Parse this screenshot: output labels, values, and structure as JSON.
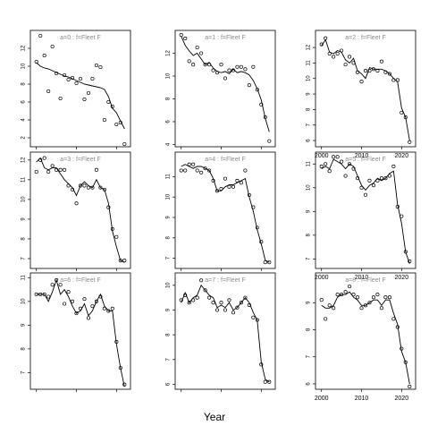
{
  "xlabel": "Year",
  "chart_data": [
    {
      "type": "scatter",
      "title": "a=0 : f=Fleet F",
      "ylim": [
        1,
        14
      ],
      "yticks": [
        2,
        4,
        6,
        8,
        10,
        12
      ],
      "xticks": [
        2000,
        2010,
        2020
      ],
      "show_xtick_labels": false,
      "series": [
        {
          "kind": "points",
          "x": [
            2000,
            2001,
            2002,
            2003,
            2004,
            2005,
            2006,
            2007,
            2008,
            2009,
            2010,
            2011,
            2012,
            2013,
            2014,
            2015,
            2016,
            2017,
            2018,
            2019,
            2020,
            2021,
            2022
          ],
          "y": [
            10.5,
            13.4,
            11.2,
            7.2,
            12.2,
            9.2,
            6.4,
            9.0,
            8.5,
            8.7,
            8.1,
            8.6,
            6.3,
            7.0,
            8.6,
            10.1,
            9.9,
            4.0,
            6.0,
            5.5,
            3.5,
            3.7,
            1.3
          ]
        },
        {
          "kind": "fit",
          "x": [
            2000,
            2001,
            2002,
            2003,
            2004,
            2005,
            2006,
            2007,
            2008,
            2009,
            2010,
            2011,
            2012,
            2013,
            2014,
            2015,
            2016,
            2017,
            2018,
            2019,
            2020,
            2021,
            2022
          ],
          "y": [
            10.4,
            10.0,
            9.8,
            9.7,
            9.5,
            9.3,
            9.1,
            8.9,
            8.8,
            8.6,
            8.4,
            8.2,
            8.0,
            7.9,
            7.8,
            7.7,
            7.6,
            7.4,
            6.6,
            5.3,
            4.8,
            3.9,
            3.0
          ]
        }
      ]
    },
    {
      "type": "scatter",
      "title": "a=3 : f=Fleet F",
      "ylim": [
        6.5,
        12.4
      ],
      "yticks": [
        7,
        8,
        9,
        10,
        11,
        12
      ],
      "xticks": [
        2000,
        2010,
        2020
      ],
      "show_xtick_labels": false,
      "series": [
        {
          "kind": "points",
          "x": [
            2000,
            2001,
            2002,
            2003,
            2004,
            2005,
            2006,
            2007,
            2008,
            2009,
            2010,
            2011,
            2012,
            2013,
            2014,
            2015,
            2016,
            2017,
            2018,
            2019,
            2020,
            2021,
            2022
          ],
          "y": [
            11.4,
            12.0,
            12.1,
            11.4,
            11.7,
            11.5,
            11.5,
            11.5,
            10.7,
            10.5,
            9.8,
            10.7,
            10.7,
            10.6,
            10.6,
            11.5,
            10.6,
            10.5,
            9.6,
            8.5,
            8.1,
            6.9,
            6.9
          ]
        },
        {
          "kind": "fit",
          "x": [
            2000,
            2001,
            2002,
            2003,
            2004,
            2005,
            2006,
            2007,
            2008,
            2009,
            2010,
            2011,
            2012,
            2013,
            2014,
            2015,
            2016,
            2017,
            2018,
            2019,
            2020,
            2021,
            2022
          ],
          "y": [
            11.9,
            12.1,
            11.6,
            11.5,
            11.6,
            11.6,
            11.3,
            11.0,
            10.8,
            10.6,
            10.2,
            10.7,
            10.9,
            10.7,
            10.6,
            11.0,
            10.6,
            10.5,
            9.8,
            8.4,
            7.6,
            6.9,
            6.8
          ]
        }
      ]
    },
    {
      "type": "scatter",
      "title": "a=6 : f=Fleet F",
      "ylim": [
        6.3,
        11.2
      ],
      "yticks": [
        7,
        8,
        9,
        10,
        11
      ],
      "xticks": [
        2000,
        2010,
        2020
      ],
      "show_xtick_labels": false,
      "series": [
        {
          "kind": "points",
          "x": [
            2000,
            2001,
            2002,
            2003,
            2004,
            2005,
            2006,
            2007,
            2008,
            2009,
            2010,
            2011,
            2012,
            2013,
            2014,
            2015,
            2016,
            2017,
            2018,
            2019,
            2020,
            2021,
            2022
          ],
          "y": [
            10.3,
            10.3,
            10.3,
            10.2,
            10.7,
            10.9,
            10.7,
            9.9,
            10.4,
            10.0,
            9.5,
            9.7,
            10.1,
            9.3,
            9.8,
            10.0,
            10.2,
            9.7,
            9.6,
            9.7,
            8.3,
            7.2,
            6.5
          ]
        },
        {
          "kind": "fit",
          "x": [
            2000,
            2001,
            2002,
            2003,
            2004,
            2005,
            2006,
            2007,
            2008,
            2009,
            2010,
            2011,
            2012,
            2013,
            2014,
            2015,
            2016,
            2017,
            2018,
            2019,
            2020,
            2021,
            2022
          ],
          "y": [
            10.3,
            10.3,
            10.3,
            10.0,
            10.4,
            10.9,
            10.3,
            10.5,
            10.2,
            9.8,
            9.5,
            9.6,
            9.9,
            9.4,
            9.6,
            10.0,
            10.3,
            9.8,
            9.6,
            9.6,
            8.2,
            7.2,
            6.4
          ]
        }
      ]
    },
    {
      "type": "scatter",
      "title": "a=1 : f=Fleet F",
      "ylim": [
        3.8,
        14
      ],
      "yticks": [
        4,
        6,
        8,
        10,
        12
      ],
      "xticks": [
        2000,
        2010,
        2020
      ],
      "show_xtick_labels": false,
      "series": [
        {
          "kind": "points",
          "x": [
            2000,
            2001,
            2002,
            2003,
            2004,
            2005,
            2006,
            2007,
            2008,
            2009,
            2010,
            2011,
            2012,
            2013,
            2014,
            2015,
            2016,
            2017,
            2018,
            2019,
            2020,
            2021,
            2022
          ],
          "y": [
            13.6,
            13.3,
            11.3,
            11.0,
            12.5,
            12.0,
            11.0,
            11.0,
            10.5,
            10.3,
            11.0,
            9.8,
            10.5,
            10.5,
            10.8,
            10.8,
            10.6,
            9.2,
            10.8,
            8.8,
            7.5,
            6.4,
            4.3
          ]
        },
        {
          "kind": "fit",
          "x": [
            2000,
            2001,
            2002,
            2003,
            2004,
            2005,
            2006,
            2007,
            2008,
            2009,
            2010,
            2011,
            2012,
            2013,
            2014,
            2015,
            2016,
            2017,
            2018,
            2019,
            2020,
            2021,
            2022
          ],
          "y": [
            13.5,
            12.7,
            12.2,
            11.8,
            12.0,
            11.5,
            11.0,
            11.2,
            10.7,
            10.4,
            10.3,
            10.4,
            10.2,
            10.6,
            10.3,
            10.4,
            10.3,
            10.1,
            9.6,
            8.9,
            7.9,
            6.3,
            5.1
          ]
        }
      ]
    },
    {
      "type": "scatter",
      "title": "a=4 : f=Fleet F",
      "ylim": [
        6.5,
        12.2
      ],
      "yticks": [
        7,
        8,
        9,
        10,
        11
      ],
      "xticks": [
        2000,
        2010,
        2020
      ],
      "show_xtick_labels": false,
      "series": [
        {
          "kind": "points",
          "x": [
            2000,
            2001,
            2002,
            2003,
            2004,
            2005,
            2006,
            2007,
            2008,
            2009,
            2010,
            2011,
            2012,
            2013,
            2014,
            2015,
            2016,
            2017,
            2018,
            2019,
            2020,
            2021,
            2022
          ],
          "y": [
            11.3,
            11.3,
            11.6,
            11.6,
            11.3,
            11.2,
            11.4,
            11.3,
            10.8,
            10.3,
            10.4,
            10.9,
            10.5,
            10.5,
            10.8,
            10.7,
            11.3,
            10.1,
            9.5,
            8.5,
            7.8,
            6.8,
            6.8
          ]
        },
        {
          "kind": "fit",
          "x": [
            2000,
            2001,
            2002,
            2003,
            2004,
            2005,
            2006,
            2007,
            2008,
            2009,
            2010,
            2011,
            2012,
            2013,
            2014,
            2015,
            2016,
            2017,
            2018,
            2019,
            2020,
            2021,
            2022
          ],
          "y": [
            11.5,
            11.6,
            11.5,
            11.4,
            11.5,
            11.5,
            11.4,
            11.3,
            10.9,
            10.3,
            10.3,
            10.5,
            10.6,
            10.6,
            10.7,
            10.8,
            10.9,
            10.0,
            9.3,
            8.4,
            7.7,
            6.9,
            6.8
          ]
        }
      ]
    },
    {
      "type": "scatter",
      "title": "a=7 : f=Fleet F",
      "ylim": [
        5.8,
        10.5
      ],
      "yticks": [
        6,
        7,
        8,
        9,
        10
      ],
      "xticks": [
        2000,
        2010,
        2020
      ],
      "show_xtick_labels": false,
      "series": [
        {
          "kind": "points",
          "x": [
            2000,
            2001,
            2002,
            2003,
            2004,
            2005,
            2006,
            2007,
            2008,
            2009,
            2010,
            2011,
            2012,
            2013,
            2014,
            2015,
            2016,
            2017,
            2018,
            2019,
            2020,
            2021,
            2022
          ],
          "y": [
            9.4,
            9.6,
            9.3,
            9.4,
            9.5,
            10.2,
            9.8,
            9.5,
            9.3,
            9.0,
            9.3,
            9.0,
            9.4,
            8.9,
            9.1,
            9.3,
            9.5,
            9.2,
            8.7,
            8.6,
            6.8,
            6.1,
            6.1
          ]
        },
        {
          "kind": "fit",
          "x": [
            2000,
            2001,
            2002,
            2003,
            2004,
            2005,
            2006,
            2007,
            2008,
            2009,
            2010,
            2011,
            2012,
            2013,
            2014,
            2015,
            2016,
            2017,
            2018,
            2019,
            2020,
            2021,
            2022
          ],
          "y": [
            9.3,
            9.7,
            9.3,
            9.5,
            9.6,
            10.0,
            9.8,
            9.6,
            9.5,
            9.1,
            9.2,
            9.1,
            9.3,
            9.0,
            9.1,
            9.3,
            9.5,
            9.3,
            8.9,
            8.6,
            6.9,
            6.2,
            6.1
          ]
        }
      ]
    },
    {
      "type": "scatter",
      "title": "a=2 : f=Fleet F",
      "ylim": [
        5.6,
        13.1
      ],
      "yticks": [
        6,
        7,
        8,
        9,
        10,
        11,
        12
      ],
      "xticks": [
        2000,
        2010,
        2020
      ],
      "show_xtick_labels": true,
      "series": [
        {
          "kind": "points",
          "x": [
            2000,
            2001,
            2002,
            2003,
            2004,
            2005,
            2006,
            2007,
            2008,
            2009,
            2010,
            2011,
            2012,
            2013,
            2014,
            2015,
            2016,
            2017,
            2018,
            2019,
            2020,
            2021,
            2022
          ],
          "y": [
            12.2,
            12.6,
            11.6,
            11.4,
            11.6,
            11.8,
            10.9,
            11.4,
            11.0,
            10.4,
            9.8,
            10.5,
            10.5,
            10.6,
            10.5,
            11.1,
            10.4,
            10.3,
            9.9,
            9.9,
            7.8,
            7.5,
            5.9
          ]
        },
        {
          "kind": "fit",
          "x": [
            2000,
            2001,
            2002,
            2003,
            2004,
            2005,
            2006,
            2007,
            2008,
            2009,
            2010,
            2011,
            2012,
            2013,
            2014,
            2015,
            2016,
            2017,
            2018,
            2019,
            2020,
            2021,
            2022
          ],
          "y": [
            12.1,
            12.5,
            11.7,
            11.6,
            11.8,
            11.7,
            11.2,
            11.0,
            11.3,
            10.5,
            10.3,
            10.0,
            10.7,
            10.6,
            10.6,
            10.6,
            10.5,
            10.3,
            10.0,
            9.8,
            8.1,
            7.5,
            6.0
          ]
        }
      ]
    },
    {
      "type": "scatter",
      "title": "a=5 : f=Fleet F",
      "ylim": [
        6.6,
        11.5
      ],
      "yticks": [
        7,
        8,
        9,
        10,
        11
      ],
      "xticks": [
        2000,
        2010,
        2020
      ],
      "show_xtick_labels": true,
      "series": [
        {
          "kind": "points",
          "x": [
            2000,
            2001,
            2002,
            2003,
            2004,
            2005,
            2006,
            2007,
            2008,
            2009,
            2010,
            2011,
            2012,
            2013,
            2014,
            2015,
            2016,
            2017,
            2018,
            2019,
            2020,
            2021,
            2022
          ],
          "y": [
            10.9,
            11.0,
            10.7,
            11.3,
            11.3,
            11.1,
            10.5,
            11.0,
            10.8,
            10.4,
            10.0,
            9.7,
            10.3,
            10.1,
            10.3,
            10.4,
            10.4,
            10.5,
            10.9,
            9.2,
            8.8,
            7.3,
            6.9
          ]
        },
        {
          "kind": "fit",
          "x": [
            2000,
            2001,
            2002,
            2003,
            2004,
            2005,
            2006,
            2007,
            2008,
            2009,
            2010,
            2011,
            2012,
            2013,
            2014,
            2015,
            2016,
            2017,
            2018,
            2019,
            2020,
            2021,
            2022
          ],
          "y": [
            10.8,
            10.9,
            10.8,
            11.2,
            11.1,
            11.0,
            10.8,
            11.0,
            10.9,
            10.5,
            10.1,
            9.9,
            10.1,
            10.2,
            10.4,
            10.3,
            10.4,
            10.6,
            10.7,
            9.3,
            8.5,
            7.3,
            6.8
          ]
        }
      ]
    },
    {
      "type": "scatter",
      "title": "a=8 : f=Fleet F",
      "ylim": [
        5.8,
        10.1
      ],
      "yticks": [
        6,
        7,
        8,
        9
      ],
      "xticks": [
        2000,
        2010,
        2020
      ],
      "show_xtick_labels": true,
      "series": [
        {
          "kind": "points",
          "x": [
            2000,
            2001,
            2002,
            2003,
            2004,
            2005,
            2006,
            2007,
            2008,
            2009,
            2010,
            2011,
            2012,
            2013,
            2014,
            2015,
            2016,
            2017,
            2018,
            2019,
            2020,
            2021,
            2022
          ],
          "y": [
            9.1,
            8.4,
            8.9,
            8.8,
            9.3,
            9.3,
            9.4,
            9.6,
            9.3,
            9.2,
            8.8,
            8.9,
            9.0,
            9.2,
            9.3,
            8.8,
            9.2,
            9.2,
            8.4,
            8.1,
            7.3,
            6.8,
            5.9
          ]
        },
        {
          "kind": "fit",
          "x": [
            2000,
            2001,
            2002,
            2003,
            2004,
            2005,
            2006,
            2007,
            2008,
            2009,
            2010,
            2011,
            2012,
            2013,
            2014,
            2015,
            2016,
            2017,
            2018,
            2019,
            2020,
            2021,
            2022
          ],
          "y": [
            8.9,
            8.8,
            8.8,
            8.9,
            9.2,
            9.3,
            9.3,
            9.4,
            9.2,
            9.1,
            8.9,
            8.9,
            9.0,
            9.1,
            9.1,
            8.9,
            9.1,
            9.1,
            8.6,
            8.2,
            7.2,
            6.8,
            6.0
          ]
        }
      ]
    }
  ]
}
